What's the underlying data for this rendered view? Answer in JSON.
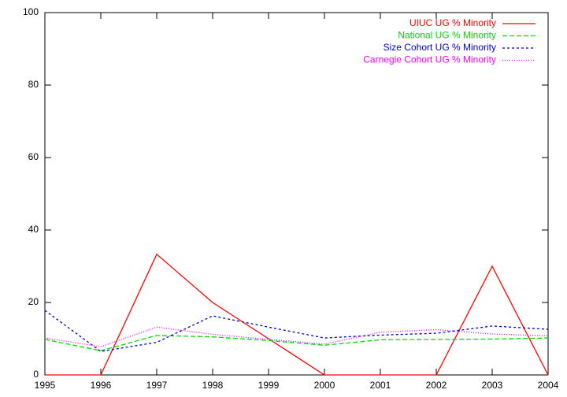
{
  "chart_data": {
    "type": "line",
    "x": [
      1995,
      1996,
      1997,
      1998,
      1999,
      2000,
      2001,
      2002,
      2003,
      2004
    ],
    "xlim": [
      1995,
      2004
    ],
    "xticks": [
      1995,
      1996,
      1997,
      1998,
      1999,
      2000,
      2001,
      2002,
      2003,
      2004
    ],
    "ylim": [
      0,
      100
    ],
    "yticks": [
      0,
      20,
      40,
      60,
      80,
      100
    ],
    "grid": false,
    "legend": "top-right",
    "series": [
      {
        "name": "UIUC UG % Minority",
        "color": "#ff0000",
        "values": [
          0,
          0,
          33.3,
          20,
          10,
          0,
          0,
          0,
          30,
          0
        ]
      },
      {
        "name": "National UG % Minority",
        "color": "#00dd00",
        "values": [
          9.8,
          6.7,
          10.9,
          10.5,
          9.5,
          8.2,
          9.7,
          9.8,
          9.9,
          10.2
        ]
      },
      {
        "name": "Size Cohort UG % Minority",
        "color": "#0000cc",
        "values": [
          17.8,
          6.5,
          9.0,
          16.3,
          13.2,
          10.2,
          11.0,
          11.5,
          13.5,
          12.6
        ]
      },
      {
        "name": "Carnegie Cohort UG % Minority",
        "color": "#ff00ff",
        "values": [
          10.2,
          7.8,
          13.2,
          11.2,
          9.8,
          8.5,
          11.8,
          12.5,
          11.3,
          10.8
        ]
      }
    ]
  }
}
